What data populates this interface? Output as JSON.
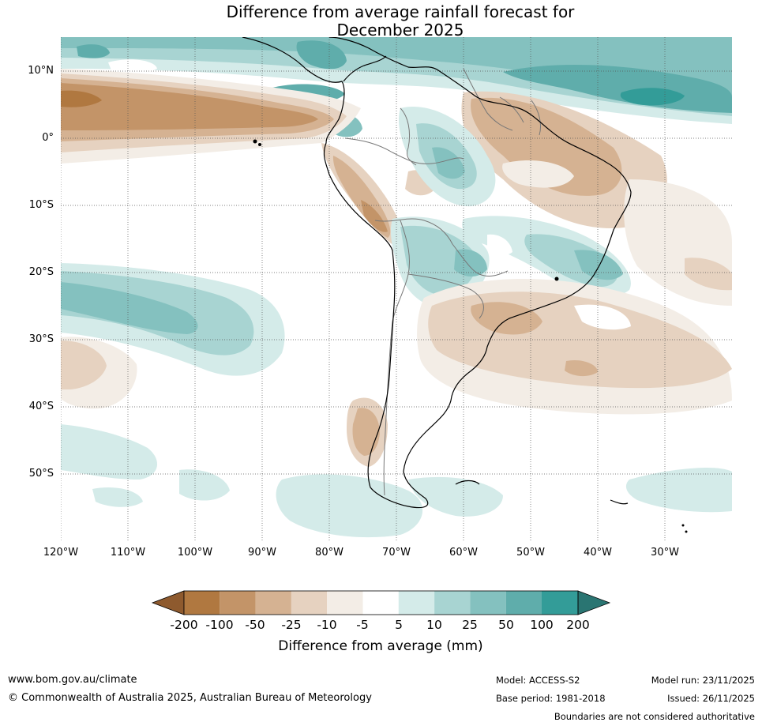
{
  "title": {
    "line1": "Difference from average rainfall forecast for",
    "line2": "December 2025"
  },
  "map": {
    "lat_labels": [
      "10°N",
      "0°",
      "10°S",
      "20°S",
      "30°S",
      "40°S",
      "50°S"
    ],
    "lon_labels": [
      "120°W",
      "110°W",
      "100°W",
      "90°W",
      "80°W",
      "70°W",
      "60°W",
      "50°W",
      "40°W",
      "30°W"
    ]
  },
  "legend": {
    "ticks": [
      "-200",
      "-100",
      "-50",
      "-25",
      "-10",
      "-5",
      "5",
      "10",
      "25",
      "50",
      "100",
      "200"
    ],
    "colors": {
      "lt_minus_200": "#8e5a2e",
      "minus_200_to_100": "#b07840",
      "minus_100_to_50": "#c39468",
      "minus_50_to_25": "#d5b292",
      "minus_25_to_10": "#e6d2c0",
      "minus_10_to_5": "#f3ede6",
      "minus_5_to_5": "#ffffff",
      "p5_to_10": "#d4ebe9",
      "p10_to_25": "#a8d4d2",
      "p25_to_50": "#84c1bf",
      "p50_to_100": "#5fadab",
      "p100_to_200": "#339c98",
      "gt_200": "#2a7572"
    },
    "title": "Difference from average (mm)"
  },
  "footer": {
    "website": "www.bom.gov.au/climate",
    "copyright": "© Commonwealth of Australia 2025, Australian Bureau of Meteorology",
    "model": "Model: ACCESS-S2",
    "base_period": "Base period: 1981-2018",
    "model_run": "Model run: 23/11/2025",
    "issued": "Issued: 26/11/2025",
    "boundaries_note": "Boundaries are not considered authoritative"
  }
}
